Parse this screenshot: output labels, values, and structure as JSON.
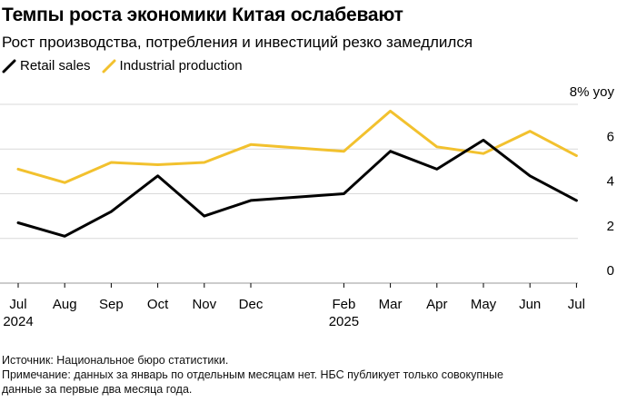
{
  "header": {
    "title": "Темпы роста экономики Китая ослабевают",
    "subtitle": "Рост производства, потребления и инвестиций резко замедлился"
  },
  "chart_data": {
    "type": "line",
    "x_labels": [
      "Jul",
      "Aug",
      "Sep",
      "Oct",
      "Nov",
      "Dec",
      "Feb",
      "Mar",
      "Apr",
      "May",
      "Jun",
      "Jul"
    ],
    "x_month_index": [
      0,
      1,
      2,
      3,
      4,
      5,
      7,
      8,
      9,
      10,
      11,
      12
    ],
    "year_labels": [
      {
        "month_index": 0,
        "text": "2024"
      },
      {
        "month_index": 7,
        "text": "2025"
      }
    ],
    "series": [
      {
        "name": "Retail sales",
        "color": "#000000",
        "values": [
          2.7,
          2.1,
          3.2,
          4.8,
          3.0,
          3.7,
          4.0,
          5.9,
          5.1,
          6.4,
          4.8,
          3.7
        ]
      },
      {
        "name": "Industrial production",
        "color": "#f2c12e",
        "values": [
          5.1,
          4.5,
          5.4,
          5.3,
          5.4,
          6.2,
          5.9,
          7.7,
          6.1,
          5.8,
          6.8,
          5.7
        ]
      }
    ],
    "y_ticks": [
      {
        "value": 0,
        "label": "0"
      },
      {
        "value": 2,
        "label": "2"
      },
      {
        "value": 4,
        "label": "4"
      },
      {
        "value": 6,
        "label": "6"
      },
      {
        "value": 8,
        "label": "8% yoy"
      }
    ],
    "ylim": [
      0,
      8
    ],
    "grid": true,
    "legend_position": "top-left"
  },
  "footer": {
    "source": "Источник: Национальное бюро статистики.",
    "note_line1": "Примечание: данных за январь по отдельным месяцам нет. НБС публикует только совокупные",
    "note_line2": "данные за первые два месяца года."
  }
}
